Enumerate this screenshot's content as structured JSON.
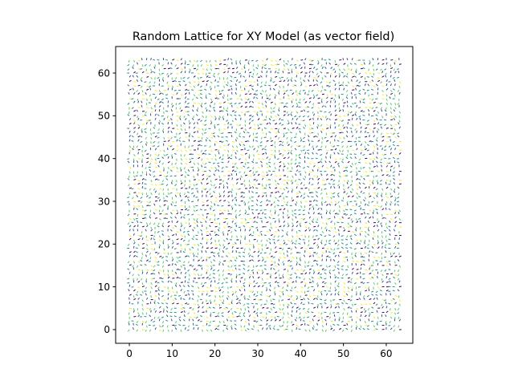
{
  "chart_data": {
    "type": "quiver",
    "title": "Random Lattice for XY Model (as vector field)",
    "xlabel": "",
    "ylabel": "",
    "grid_size": [
      64,
      64
    ],
    "xlim": [
      -3.2,
      66.2
    ],
    "ylim": [
      -3.2,
      66.2
    ],
    "xticks": [
      0,
      10,
      20,
      30,
      40,
      50,
      60
    ],
    "yticks": [
      0,
      10,
      20,
      30,
      40,
      50,
      60
    ],
    "angle_range_rad": [
      0,
      6.283
    ],
    "colormap": [
      "#440154",
      "#3b528b",
      "#21918c",
      "#5ec962",
      "#fde725"
    ],
    "grid": false,
    "legend": "none"
  }
}
